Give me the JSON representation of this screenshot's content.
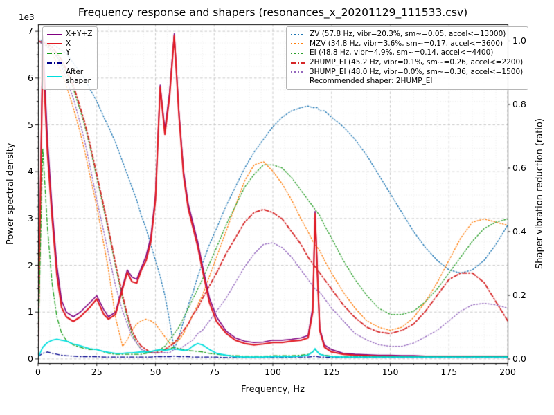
{
  "chart_data": {
    "type": "line",
    "title": "Frequency response and shapers (resonances_x_20201129_111533.csv)",
    "xlabel": "Frequency, Hz",
    "ylabel": "Power spectral density",
    "ylabel2": "Shaper vibration reduction (ratio)",
    "y_offset_text": "1e3",
    "xlim": [
      0,
      200
    ],
    "ylim": [
      -0.09,
      7.15
    ],
    "ylim2": [
      -0.013,
      1.052
    ],
    "xticks": [
      0,
      25,
      50,
      75,
      100,
      125,
      150,
      175,
      200
    ],
    "yticks": [
      0,
      1,
      2,
      3,
      4,
      5,
      6,
      7
    ],
    "yticks2": [
      "0.0",
      "0.2",
      "0.4",
      "0.6",
      "0.8",
      "1.0"
    ],
    "x_minor_step": 5,
    "y_minor_step": 0.25,
    "grid": true,
    "legend_note": "Recommended shaper: 2HUMP_EI",
    "legend_groups": {
      "left": [
        0,
        1,
        2,
        3,
        4
      ],
      "right": [
        5,
        6,
        7,
        8,
        9
      ]
    },
    "x": [
      0,
      2,
      4,
      6,
      8,
      10,
      12,
      15,
      18,
      20,
      22,
      25,
      28,
      30,
      33,
      36,
      38,
      40,
      42,
      44,
      46,
      48,
      50,
      52,
      54,
      56,
      58,
      60,
      62,
      64,
      66,
      68,
      70,
      73,
      76,
      80,
      84,
      88,
      92,
      96,
      100,
      104,
      108,
      112,
      115,
      117,
      118,
      119,
      120,
      122,
      125,
      130,
      135,
      140,
      145,
      150,
      155,
      160,
      165,
      170,
      175,
      180,
      185,
      190,
      195,
      200
    ],
    "series": [
      {
        "name": "X+Y+Z",
        "axis": "left",
        "color": "#800080",
        "style": "solid",
        "width": 1.6,
        "values": [
          0.3,
          6.9,
          4.7,
          3.2,
          2.0,
          1.25,
          1.0,
          0.9,
          1.0,
          1.1,
          1.2,
          1.35,
          1.05,
          0.9,
          1.0,
          1.55,
          1.9,
          1.75,
          1.7,
          1.95,
          2.2,
          2.6,
          3.5,
          5.85,
          4.9,
          5.7,
          6.95,
          5.3,
          4.0,
          3.3,
          2.9,
          2.5,
          2.0,
          1.3,
          0.9,
          0.6,
          0.45,
          0.38,
          0.35,
          0.36,
          0.4,
          0.4,
          0.42,
          0.45,
          0.5,
          1.1,
          3.15,
          1.85,
          0.65,
          0.3,
          0.2,
          0.12,
          0.1,
          0.09,
          0.08,
          0.08,
          0.07,
          0.07,
          0.06,
          0.06,
          0.06,
          0.06,
          0.06,
          0.06,
          0.06,
          0.06
        ]
      },
      {
        "name": "X",
        "axis": "left",
        "color": "#e01b24",
        "style": "solid",
        "width": 2.2,
        "values": [
          0.25,
          6.5,
          4.4,
          3.0,
          1.8,
          1.1,
          0.9,
          0.8,
          0.9,
          1.0,
          1.1,
          1.28,
          0.95,
          0.85,
          0.95,
          1.5,
          1.85,
          1.65,
          1.62,
          1.9,
          2.1,
          2.5,
          3.4,
          5.8,
          4.8,
          5.6,
          6.9,
          5.2,
          3.9,
          3.2,
          2.8,
          2.4,
          1.9,
          1.2,
          0.8,
          0.55,
          0.4,
          0.33,
          0.3,
          0.32,
          0.35,
          0.35,
          0.38,
          0.4,
          0.45,
          1.0,
          3.1,
          1.8,
          0.6,
          0.25,
          0.15,
          0.1,
          0.08,
          0.07,
          0.06,
          0.06,
          0.05,
          0.05,
          0.05,
          0.05,
          0.05,
          0.05,
          0.05,
          0.05,
          0.05,
          0.05
        ]
      },
      {
        "name": "Y",
        "axis": "left",
        "color": "#1a9e1a",
        "style": "dashdot",
        "width": 1.3,
        "values": [
          0.2,
          4.5,
          2.8,
          1.6,
          0.9,
          0.55,
          0.4,
          0.3,
          0.25,
          0.22,
          0.2,
          0.2,
          0.15,
          0.12,
          0.1,
          0.1,
          0.1,
          0.1,
          0.1,
          0.1,
          0.12,
          0.15,
          0.18,
          0.2,
          0.2,
          0.22,
          0.25,
          0.22,
          0.2,
          0.18,
          0.17,
          0.16,
          0.15,
          0.12,
          0.1,
          0.08,
          0.07,
          0.06,
          0.06,
          0.06,
          0.07,
          0.07,
          0.07,
          0.08,
          0.1,
          0.15,
          0.2,
          0.15,
          0.1,
          0.08,
          0.06,
          0.05,
          0.05,
          0.05,
          0.05,
          0.05,
          0.05,
          0.05,
          0.05,
          0.05,
          0.05,
          0.05,
          0.05,
          0.05,
          0.05,
          0.05
        ]
      },
      {
        "name": "Z",
        "axis": "left",
        "color": "#00008b",
        "style": "dashdot",
        "width": 1.3,
        "values": [
          0.05,
          0.12,
          0.15,
          0.12,
          0.1,
          0.08,
          0.07,
          0.06,
          0.05,
          0.05,
          0.05,
          0.05,
          0.04,
          0.04,
          0.04,
          0.04,
          0.04,
          0.04,
          0.04,
          0.04,
          0.04,
          0.04,
          0.05,
          0.05,
          0.05,
          0.05,
          0.06,
          0.05,
          0.05,
          0.05,
          0.04,
          0.04,
          0.04,
          0.04,
          0.04,
          0.03,
          0.03,
          0.03,
          0.03,
          0.03,
          0.03,
          0.03,
          0.04,
          0.04,
          0.04,
          0.05,
          0.06,
          0.05,
          0.04,
          0.04,
          0.03,
          0.03,
          0.03,
          0.03,
          0.03,
          0.03,
          0.03,
          0.03,
          0.03,
          0.03,
          0.03,
          0.03,
          0.03,
          0.03,
          0.03,
          0.03
        ]
      },
      {
        "name": "After\nshaper",
        "axis": "left",
        "color": "#00dede",
        "style": "solid",
        "width": 1.8,
        "values": [
          0.03,
          0.25,
          0.35,
          0.4,
          0.42,
          0.4,
          0.38,
          0.32,
          0.28,
          0.25,
          0.22,
          0.2,
          0.16,
          0.14,
          0.12,
          0.12,
          0.13,
          0.13,
          0.14,
          0.15,
          0.15,
          0.16,
          0.18,
          0.2,
          0.18,
          0.2,
          0.22,
          0.2,
          0.18,
          0.2,
          0.28,
          0.33,
          0.3,
          0.2,
          0.12,
          0.08,
          0.05,
          0.04,
          0.04,
          0.04,
          0.05,
          0.05,
          0.05,
          0.06,
          0.08,
          0.15,
          0.22,
          0.15,
          0.1,
          0.07,
          0.05,
          0.04,
          0.04,
          0.04,
          0.04,
          0.04,
          0.04,
          0.04,
          0.04,
          0.04,
          0.04,
          0.04,
          0.04,
          0.04,
          0.04,
          0.04
        ]
      },
      {
        "name": "ZV (57.8 Hz, vibr=20.3%, sm~=0.05, accel<=13000)",
        "axis": "right",
        "color": "#1f77b4",
        "style": "dotted",
        "width": 1.4,
        "values": [
          1.0,
          1.0,
          0.99,
          0.99,
          0.98,
          0.97,
          0.96,
          0.93,
          0.9,
          0.88,
          0.85,
          0.81,
          0.76,
          0.73,
          0.68,
          0.62,
          0.58,
          0.54,
          0.5,
          0.45,
          0.41,
          0.36,
          0.31,
          0.26,
          0.2,
          0.12,
          0.03,
          0.07,
          0.12,
          0.17,
          0.21,
          0.26,
          0.3,
          0.36,
          0.41,
          0.48,
          0.54,
          0.6,
          0.65,
          0.69,
          0.73,
          0.76,
          0.78,
          0.79,
          0.795,
          0.79,
          0.79,
          0.79,
          0.78,
          0.78,
          0.76,
          0.73,
          0.69,
          0.64,
          0.58,
          0.52,
          0.46,
          0.4,
          0.35,
          0.31,
          0.28,
          0.27,
          0.28,
          0.31,
          0.36,
          0.42
        ]
      },
      {
        "name": "MZV (34.8 Hz, vibr=3.6%, sm~=0.17, accel<=3600)",
        "axis": "right",
        "color": "#ff7f0e",
        "style": "dotted",
        "width": 1.4,
        "values": [
          1.0,
          0.99,
          0.98,
          0.96,
          0.93,
          0.9,
          0.86,
          0.79,
          0.71,
          0.65,
          0.58,
          0.48,
          0.36,
          0.28,
          0.13,
          0.04,
          0.06,
          0.09,
          0.11,
          0.12,
          0.125,
          0.12,
          0.11,
          0.09,
          0.07,
          0.05,
          0.05,
          0.06,
          0.08,
          0.11,
          0.14,
          0.17,
          0.2,
          0.26,
          0.32,
          0.4,
          0.48,
          0.56,
          0.61,
          0.62,
          0.59,
          0.55,
          0.5,
          0.44,
          0.4,
          0.37,
          0.36,
          0.35,
          0.34,
          0.31,
          0.27,
          0.21,
          0.16,
          0.12,
          0.1,
          0.09,
          0.1,
          0.13,
          0.18,
          0.24,
          0.31,
          0.38,
          0.43,
          0.44,
          0.43,
          0.42
        ]
      },
      {
        "name": "EI (48.8 Hz, vibr=4.9%, sm~=0.14, accel<=4400)",
        "axis": "right",
        "color": "#2ca02c",
        "style": "dotted",
        "width": 1.4,
        "values": [
          1.0,
          0.99,
          0.985,
          0.97,
          0.95,
          0.93,
          0.9,
          0.85,
          0.78,
          0.73,
          0.67,
          0.57,
          0.47,
          0.4,
          0.29,
          0.19,
          0.13,
          0.08,
          0.05,
          0.03,
          0.02,
          0.02,
          0.02,
          0.03,
          0.04,
          0.06,
          0.08,
          0.1,
          0.13,
          0.16,
          0.19,
          0.22,
          0.25,
          0.3,
          0.35,
          0.42,
          0.48,
          0.54,
          0.58,
          0.61,
          0.61,
          0.6,
          0.57,
          0.53,
          0.5,
          0.48,
          0.47,
          0.46,
          0.45,
          0.42,
          0.38,
          0.31,
          0.25,
          0.2,
          0.16,
          0.14,
          0.14,
          0.15,
          0.18,
          0.22,
          0.27,
          0.32,
          0.37,
          0.41,
          0.43,
          0.44
        ]
      },
      {
        "name": "2HUMP_EI (45.2 Hz, vibr=0.1%, sm~=0.26, accel<=2200)",
        "axis": "right",
        "color": "#d62728",
        "style": "dashdot",
        "width": 1.9,
        "values": [
          1.0,
          0.995,
          0.99,
          0.98,
          0.96,
          0.94,
          0.91,
          0.86,
          0.79,
          0.74,
          0.68,
          0.58,
          0.48,
          0.41,
          0.3,
          0.2,
          0.14,
          0.09,
          0.06,
          0.04,
          0.03,
          0.02,
          0.02,
          0.02,
          0.03,
          0.04,
          0.05,
          0.07,
          0.09,
          0.11,
          0.14,
          0.16,
          0.19,
          0.23,
          0.27,
          0.33,
          0.38,
          0.43,
          0.46,
          0.47,
          0.46,
          0.44,
          0.4,
          0.36,
          0.32,
          0.3,
          0.29,
          0.28,
          0.27,
          0.25,
          0.22,
          0.17,
          0.13,
          0.1,
          0.085,
          0.08,
          0.09,
          0.11,
          0.15,
          0.2,
          0.25,
          0.27,
          0.27,
          0.24,
          0.18,
          0.12
        ]
      },
      {
        "name": "3HUMP_EI (48.0 Hz, vibr=0.0%, sm~=0.36, accel<=1500)",
        "axis": "right",
        "color": "#9467bd",
        "style": "dotted",
        "width": 1.4,
        "values": [
          1.0,
          0.99,
          0.98,
          0.97,
          0.95,
          0.92,
          0.88,
          0.82,
          0.74,
          0.68,
          0.61,
          0.5,
          0.4,
          0.33,
          0.23,
          0.15,
          0.11,
          0.07,
          0.05,
          0.03,
          0.025,
          0.02,
          0.02,
          0.02,
          0.02,
          0.02,
          0.03,
          0.03,
          0.04,
          0.05,
          0.06,
          0.08,
          0.09,
          0.12,
          0.15,
          0.19,
          0.24,
          0.29,
          0.33,
          0.36,
          0.365,
          0.35,
          0.32,
          0.28,
          0.25,
          0.23,
          0.22,
          0.215,
          0.21,
          0.19,
          0.16,
          0.12,
          0.08,
          0.06,
          0.045,
          0.04,
          0.04,
          0.05,
          0.07,
          0.09,
          0.12,
          0.15,
          0.17,
          0.175,
          0.17,
          0.16
        ]
      }
    ]
  }
}
